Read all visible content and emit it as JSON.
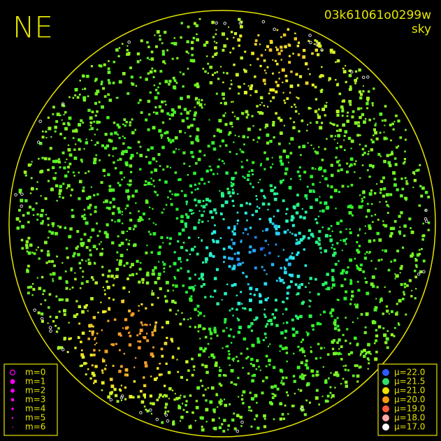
{
  "title": "NE",
  "frame_id": "03k61061o0299w",
  "subtitle": "sky",
  "magnitude_legend": {
    "color": "#ff00ff",
    "items": [
      "m=0",
      "m=1",
      "m=2",
      "m=3",
      "m=4",
      "m=5",
      "m=6"
    ]
  },
  "brightness_legend": {
    "items": [
      {
        "label": "μ=22.0",
        "color": "#2a5cff"
      },
      {
        "label": "μ=21.5",
        "color": "#2ee06a"
      },
      {
        "label": "μ=21.0",
        "color": "#f0e000"
      },
      {
        "label": "μ=20.0",
        "color": "#ff9a10"
      },
      {
        "label": "μ=19.0",
        "color": "#ff5a3a"
      },
      {
        "label": "μ=18.0",
        "color": "#ffa8a8"
      },
      {
        "label": "μ=17.0",
        "color": "#ffffff"
      }
    ]
  }
}
